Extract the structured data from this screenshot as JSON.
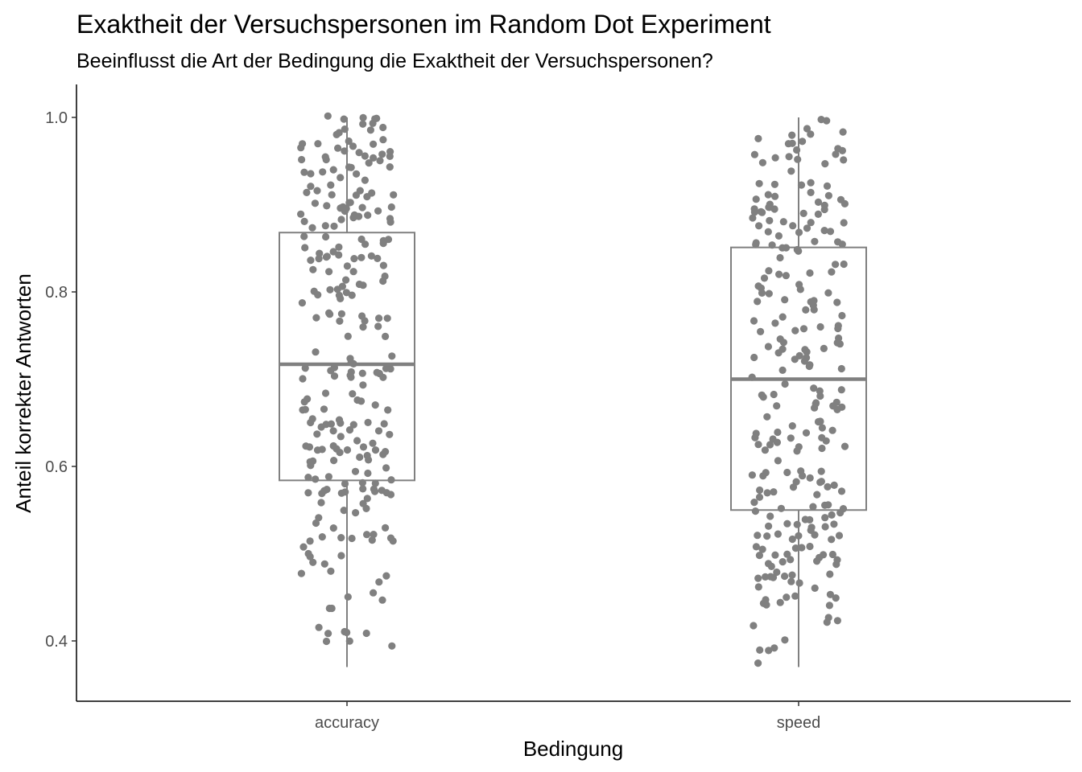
{
  "chart_data": {
    "type": "boxplot",
    "title": "Exaktheit der Versuchspersonen im Random Dot Experiment",
    "subtitle": "Beeinflusst die Art der Bedingung die Exaktheit der Versuchspersonen?",
    "xlabel": "Bedingung",
    "ylabel": "Anteil korrekter Antworten",
    "categories": [
      "accuracy",
      "speed"
    ],
    "ylim": [
      0.33,
      1.03
    ],
    "yticks": [
      0.4,
      0.6,
      0.8,
      1.0
    ],
    "ytick_labels": [
      "0.4",
      "0.6",
      "0.8",
      "1.0"
    ],
    "grid": false,
    "colors": {
      "points": "#808080",
      "box": "#808080",
      "axis": "#000000"
    },
    "boxes": [
      {
        "category": "accuracy",
        "min": 0.37,
        "q1": 0.584,
        "median": 0.717,
        "q3": 0.868,
        "max": 1.0
      },
      {
        "category": "speed",
        "min": 0.37,
        "q1": 0.55,
        "median": 0.7,
        "q3": 0.851,
        "max": 1.0
      }
    ],
    "points_note_count": [
      260,
      260
    ]
  }
}
